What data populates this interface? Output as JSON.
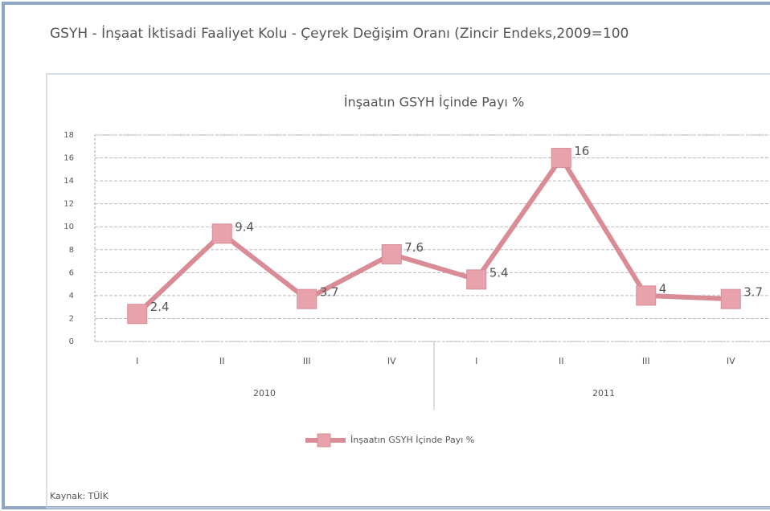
{
  "title": "GSYH - İnşaat İktisadi Faaliyet Kolu - Çeyrek Değişim Oranı (Zincir Endeks,2009=100",
  "source": "Kaynak: TÜİK",
  "chart_data": {
    "type": "line",
    "title": "İnşaatın GSYH İçinde Payı %",
    "categories": [
      "I",
      "II",
      "III",
      "IV",
      "I",
      "II",
      "III",
      "IV"
    ],
    "groups": [
      "2010",
      "2011"
    ],
    "series": [
      {
        "name": "İnşaatın GSYH İçinde Payı %",
        "color": "#d98c96",
        "values": [
          2.4,
          9.4,
          3.7,
          7.6,
          5.4,
          16.0,
          4.0,
          3.7
        ]
      }
    ],
    "ylim": [
      0,
      18
    ],
    "yticks": [
      0,
      2,
      4,
      6,
      8,
      10,
      12,
      14,
      16,
      18
    ],
    "grid": true
  }
}
